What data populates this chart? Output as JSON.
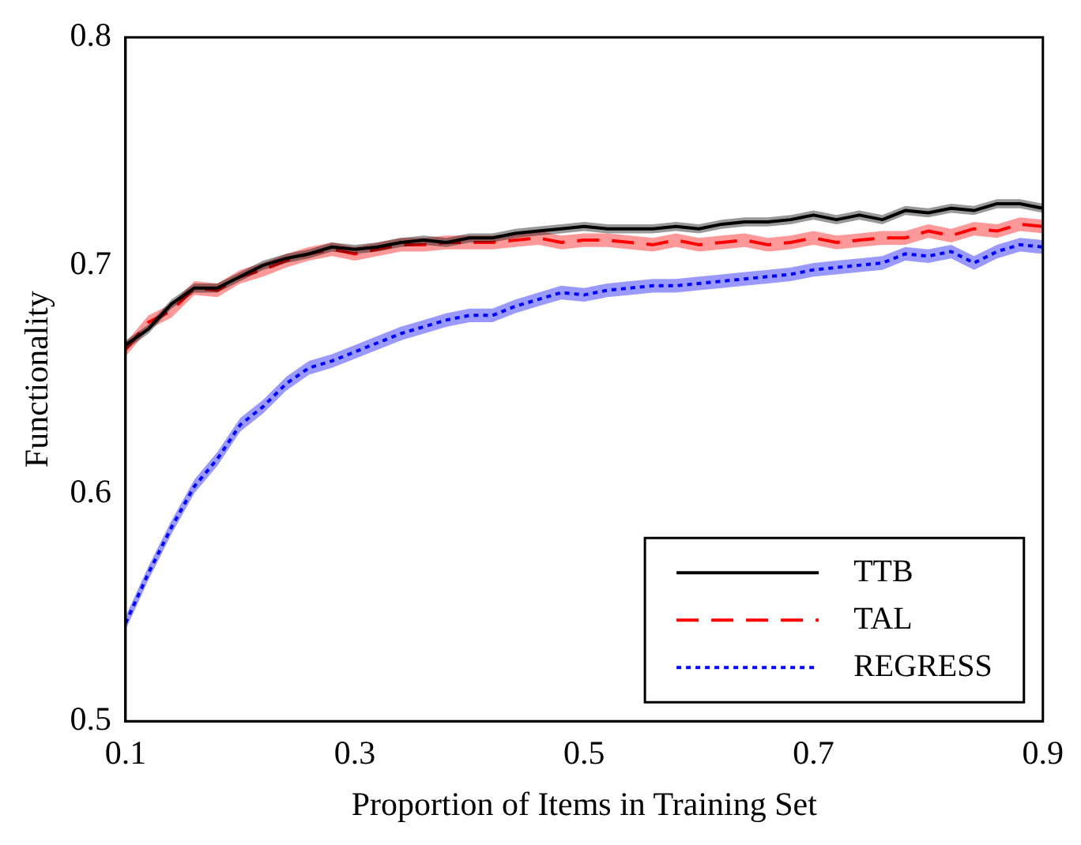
{
  "chart_data": {
    "type": "line",
    "xlabel": "Proportion of Items in Training Set",
    "ylabel": "Functionality",
    "x": [
      0.1,
      0.12,
      0.14,
      0.16,
      0.18,
      0.2,
      0.22,
      0.24,
      0.26,
      0.28,
      0.3,
      0.32,
      0.34,
      0.36,
      0.38,
      0.4,
      0.42,
      0.44,
      0.46,
      0.48,
      0.5,
      0.52,
      0.54,
      0.56,
      0.58,
      0.6,
      0.62,
      0.64,
      0.66,
      0.68,
      0.7,
      0.72,
      0.74,
      0.76,
      0.78,
      0.8,
      0.82,
      0.84,
      0.86,
      0.88,
      0.9
    ],
    "xlim": [
      0.1,
      0.9
    ],
    "xticks": [
      0.1,
      0.3,
      0.5,
      0.7,
      0.9
    ],
    "ylim": [
      0.5,
      0.8
    ],
    "yticks": [
      0.5,
      0.6,
      0.7,
      0.8
    ],
    "grid": false,
    "legend": "bottom right",
    "marker": "none",
    "series": [
      {
        "name": "TTB",
        "color": "#000000",
        "line_style": "solid",
        "values": [
          0.665,
          0.672,
          0.683,
          0.69,
          0.69,
          0.695,
          0.7,
          0.703,
          0.705,
          0.708,
          0.707,
          0.708,
          0.71,
          0.711,
          0.71,
          0.712,
          0.712,
          0.714,
          0.715,
          0.716,
          0.717,
          0.716,
          0.716,
          0.716,
          0.717,
          0.716,
          0.718,
          0.719,
          0.719,
          0.72,
          0.722,
          0.72,
          0.722,
          0.72,
          0.724,
          0.723,
          0.725,
          0.724,
          0.727,
          0.727,
          0.725
        ],
        "lower": [
          0.663,
          0.67,
          0.681,
          0.688,
          0.688,
          0.693,
          0.698,
          0.701,
          0.703,
          0.706,
          0.705,
          0.706,
          0.708,
          0.709,
          0.708,
          0.71,
          0.71,
          0.712,
          0.713,
          0.714,
          0.715,
          0.714,
          0.714,
          0.714,
          0.715,
          0.714,
          0.716,
          0.717,
          0.717,
          0.718,
          0.72,
          0.718,
          0.72,
          0.718,
          0.722,
          0.721,
          0.723,
          0.722,
          0.725,
          0.725,
          0.723
        ],
        "upper": [
          0.667,
          0.674,
          0.685,
          0.692,
          0.692,
          0.697,
          0.702,
          0.705,
          0.707,
          0.71,
          0.709,
          0.71,
          0.712,
          0.713,
          0.712,
          0.714,
          0.714,
          0.716,
          0.717,
          0.718,
          0.719,
          0.718,
          0.718,
          0.718,
          0.719,
          0.718,
          0.72,
          0.721,
          0.721,
          0.722,
          0.724,
          0.722,
          0.724,
          0.722,
          0.726,
          0.725,
          0.727,
          0.726,
          0.729,
          0.729,
          0.727
        ]
      },
      {
        "name": "TAL",
        "color": "#ff0000",
        "line_style": "dashed",
        "values": [
          0.663,
          0.675,
          0.68,
          0.69,
          0.689,
          0.695,
          0.698,
          0.702,
          0.705,
          0.707,
          0.705,
          0.707,
          0.709,
          0.709,
          0.71,
          0.71,
          0.71,
          0.711,
          0.712,
          0.71,
          0.711,
          0.711,
          0.71,
          0.709,
          0.711,
          0.709,
          0.71,
          0.711,
          0.709,
          0.71,
          0.712,
          0.71,
          0.711,
          0.712,
          0.712,
          0.715,
          0.713,
          0.716,
          0.715,
          0.718,
          0.717
        ],
        "lower": [
          0.66,
          0.672,
          0.677,
          0.687,
          0.686,
          0.692,
          0.695,
          0.699,
          0.702,
          0.704,
          0.702,
          0.704,
          0.706,
          0.706,
          0.707,
          0.707,
          0.707,
          0.708,
          0.709,
          0.707,
          0.708,
          0.708,
          0.707,
          0.706,
          0.708,
          0.706,
          0.707,
          0.708,
          0.706,
          0.707,
          0.709,
          0.707,
          0.708,
          0.709,
          0.709,
          0.712,
          0.71,
          0.713,
          0.712,
          0.715,
          0.714
        ],
        "upper": [
          0.666,
          0.678,
          0.683,
          0.693,
          0.692,
          0.698,
          0.701,
          0.705,
          0.708,
          0.71,
          0.708,
          0.71,
          0.712,
          0.712,
          0.713,
          0.713,
          0.713,
          0.714,
          0.715,
          0.713,
          0.714,
          0.714,
          0.713,
          0.712,
          0.714,
          0.712,
          0.713,
          0.714,
          0.712,
          0.713,
          0.715,
          0.713,
          0.714,
          0.715,
          0.715,
          0.718,
          0.716,
          0.719,
          0.718,
          0.721,
          0.72
        ]
      },
      {
        "name": "REGRESS",
        "color": "#0000ff",
        "line_style": "dotted",
        "values": [
          0.543,
          0.565,
          0.585,
          0.603,
          0.615,
          0.63,
          0.638,
          0.648,
          0.655,
          0.658,
          0.662,
          0.666,
          0.67,
          0.673,
          0.676,
          0.678,
          0.678,
          0.682,
          0.685,
          0.688,
          0.687,
          0.689,
          0.69,
          0.691,
          0.691,
          0.692,
          0.693,
          0.694,
          0.695,
          0.696,
          0.698,
          0.699,
          0.7,
          0.701,
          0.705,
          0.704,
          0.706,
          0.701,
          0.706,
          0.709,
          0.708
        ],
        "lower": [
          0.54,
          0.562,
          0.582,
          0.6,
          0.612,
          0.627,
          0.635,
          0.645,
          0.652,
          0.655,
          0.659,
          0.663,
          0.667,
          0.67,
          0.673,
          0.675,
          0.675,
          0.679,
          0.682,
          0.685,
          0.684,
          0.686,
          0.687,
          0.688,
          0.688,
          0.689,
          0.69,
          0.691,
          0.692,
          0.693,
          0.695,
          0.696,
          0.697,
          0.698,
          0.702,
          0.701,
          0.703,
          0.698,
          0.703,
          0.706,
          0.705
        ],
        "upper": [
          0.546,
          0.568,
          0.588,
          0.606,
          0.618,
          0.633,
          0.641,
          0.651,
          0.658,
          0.661,
          0.665,
          0.669,
          0.673,
          0.676,
          0.679,
          0.681,
          0.681,
          0.685,
          0.688,
          0.691,
          0.69,
          0.692,
          0.693,
          0.694,
          0.694,
          0.695,
          0.696,
          0.697,
          0.698,
          0.699,
          0.701,
          0.702,
          0.703,
          0.704,
          0.708,
          0.707,
          0.709,
          0.704,
          0.709,
          0.712,
          0.711
        ]
      }
    ]
  }
}
